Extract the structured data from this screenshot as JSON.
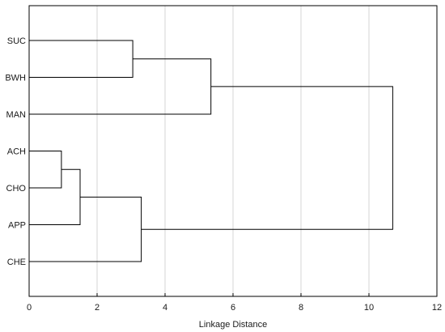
{
  "chart_data": {
    "type": "dendrogram",
    "title": "",
    "xlabel": "Linkage Distance",
    "ylabel": "",
    "xlim": [
      0,
      12
    ],
    "xticks": [
      0,
      2,
      4,
      6,
      8,
      10,
      12
    ],
    "grid": true,
    "leaves": [
      "SUC",
      "BWH",
      "MAN",
      "ACH",
      "CHO",
      "APP",
      "CHE"
    ],
    "merges": [
      {
        "children": [
          "ACH",
          "CHO"
        ],
        "distance": 0.95
      },
      {
        "children": [
          "ACH+CHO",
          "APP"
        ],
        "distance": 1.5
      },
      {
        "children": [
          "SUC",
          "BWH"
        ],
        "distance": 3.05
      },
      {
        "children": [
          "ACH+CHO+APP",
          "CHE"
        ],
        "distance": 3.3
      },
      {
        "children": [
          "SUC+BWH",
          "MAN"
        ],
        "distance": 5.35
      },
      {
        "children": [
          "SUC+BWH+MAN",
          "ACH+CHO+APP+CHE"
        ],
        "distance": 10.7
      }
    ]
  }
}
